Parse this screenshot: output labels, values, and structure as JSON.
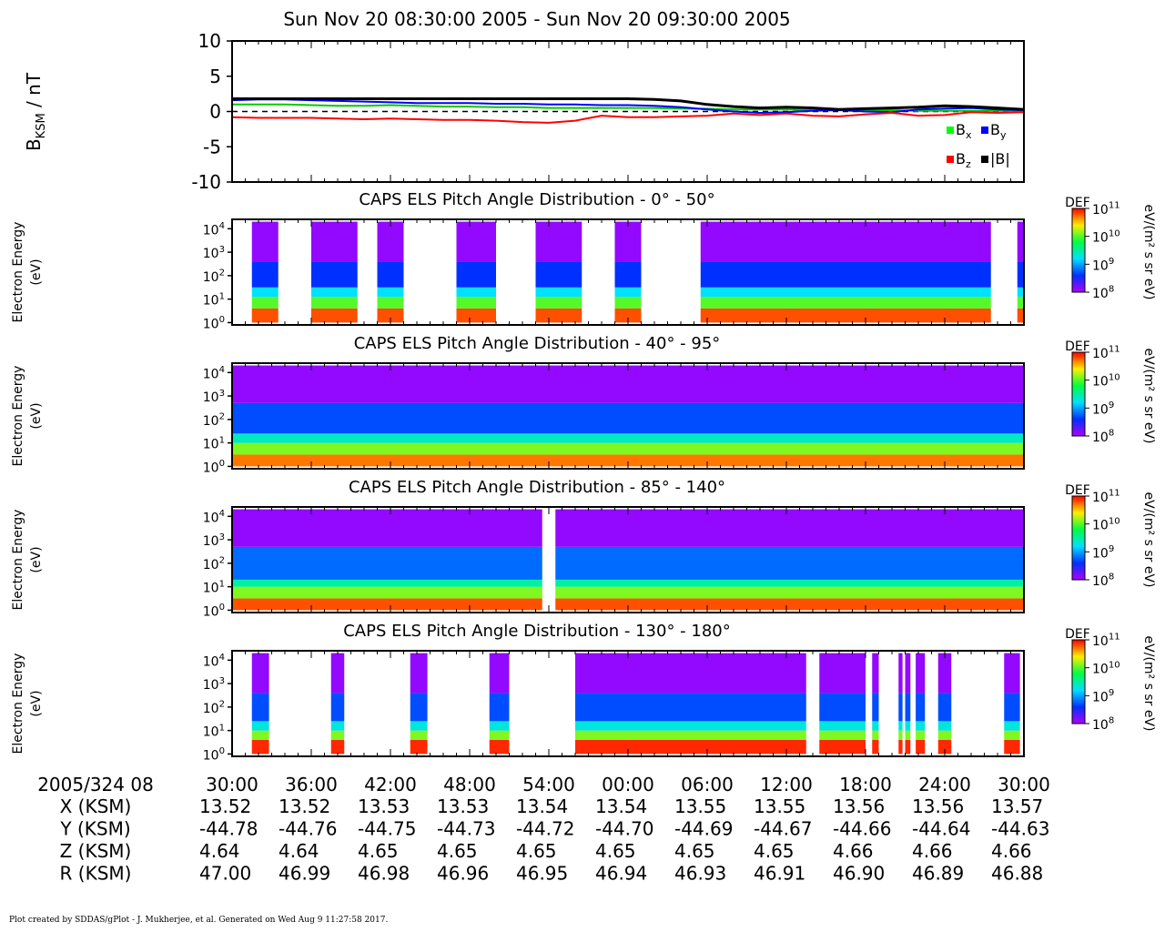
{
  "header": {
    "title": "Sun Nov 20 08:30:00 2005 - Sun Nov 20 09:30:00 2005"
  },
  "footer": {
    "text": "Plot created by SDDAS/gPlot - J. Mukherjee, et al.  Generated on Wed Aug 9 11:27:58 2017."
  },
  "chart_data": [
    {
      "type": "line",
      "ylabel_main": "B",
      "ylabel_sub": "KSM",
      "ylabel_unit": " / nT",
      "ylim": [
        -10,
        10
      ],
      "yticks": [
        10,
        5,
        0,
        -5,
        -10
      ],
      "x_minutes": [
        0,
        2,
        4,
        6,
        8,
        10,
        12,
        14,
        16,
        18,
        20,
        22,
        24,
        26,
        28,
        30,
        32,
        34,
        36,
        38,
        40,
        42,
        44,
        46,
        48,
        50,
        52,
        54,
        56,
        58,
        60
      ],
      "zero_line": "dashed",
      "series": [
        {
          "name": "x",
          "color": "#00cc00",
          "values": [
            1.0,
            1.0,
            1.0,
            0.9,
            0.8,
            0.8,
            0.9,
            0.8,
            0.7,
            0.7,
            0.6,
            0.6,
            0.5,
            0.5,
            0.5,
            0.5,
            0.5,
            0.4,
            0.4,
            0.3,
            0.3,
            0.3,
            0.2,
            0.2,
            0.2,
            0.2,
            0.1,
            0.1,
            0.1,
            0.1,
            0.1
          ]
        },
        {
          "name": "y",
          "color": "#0000ff",
          "values": [
            1.6,
            1.7,
            1.7,
            1.6,
            1.5,
            1.4,
            1.3,
            1.2,
            1.2,
            1.2,
            1.1,
            1.1,
            1.0,
            1.0,
            0.9,
            0.9,
            0.8,
            0.6,
            0.3,
            0.0,
            -0.2,
            -0.1,
            0.1,
            0.2,
            0.0,
            -0.1,
            0.3,
            0.4,
            0.5,
            0.3,
            0.2
          ]
        },
        {
          "name": "z",
          "color": "#ff0000",
          "values": [
            -0.8,
            -0.9,
            -0.9,
            -0.9,
            -1.0,
            -1.1,
            -1.0,
            -1.1,
            -1.2,
            -1.2,
            -1.3,
            -1.5,
            -1.6,
            -1.3,
            -0.6,
            -0.8,
            -0.8,
            -0.7,
            -0.6,
            -0.3,
            -0.5,
            -0.3,
            -0.6,
            -0.7,
            -0.4,
            -0.2,
            -0.6,
            -0.5,
            -0.1,
            -0.2,
            -0.1
          ]
        },
        {
          "name": "|B|",
          "color": "#000000",
          "values": [
            1.8,
            1.8,
            1.8,
            1.8,
            1.8,
            1.8,
            1.8,
            1.8,
            1.8,
            1.8,
            1.8,
            1.8,
            1.8,
            1.8,
            1.8,
            1.8,
            1.7,
            1.5,
            1.0,
            0.7,
            0.5,
            0.6,
            0.5,
            0.3,
            0.4,
            0.5,
            0.6,
            0.8,
            0.7,
            0.5,
            0.3
          ]
        }
      ],
      "legend": [
        {
          "main": "B",
          "sub": "x",
          "color": "#00ff00"
        },
        {
          "main": "B",
          "sub": "y",
          "color": "#0000ff"
        },
        {
          "main": "B",
          "sub": "z",
          "color": "#ff0000"
        },
        {
          "main": "|B|",
          "sub": "",
          "color": "#000000"
        }
      ],
      "legend_placement": "bottom-right"
    },
    {
      "type": "heatmap",
      "title": "CAPS ELS Pitch Angle Distribution - 0° - 50°",
      "ylabel_line1": "Electron Energy",
      "ylabel_line2": "(eV)",
      "y_scale": "log",
      "yticks": [
        {
          "base": "10",
          "exp": "4"
        },
        {
          "base": "10",
          "exp": "3"
        },
        {
          "base": "10",
          "exp": "2"
        },
        {
          "base": "10",
          "exp": "1"
        },
        {
          "base": "10",
          "exp": "0"
        }
      ],
      "colorbar_label": "DEF",
      "colorbar_unit": "eV/(m² s sr eV)",
      "colorbar_ticks": [
        {
          "base": "10",
          "exp": "11"
        },
        {
          "base": "10",
          "exp": "10"
        },
        {
          "base": "10",
          "exp": "9"
        },
        {
          "base": "10",
          "exp": "8"
        }
      ],
      "data_intervals_minutes": [
        [
          1.5,
          3.5
        ],
        [
          6.0,
          9.5
        ],
        [
          11.0,
          13.0
        ],
        [
          17.0,
          20.0
        ],
        [
          23.0,
          26.5
        ],
        [
          29.0,
          31.0
        ],
        [
          35.5,
          57.5
        ],
        [
          59.5,
          60.0
        ]
      ],
      "bands_log10_eV": [
        {
          "range": [
            0,
            0.6
          ],
          "level": 10.8
        },
        {
          "range": [
            0.6,
            1.1
          ],
          "level": 10.0
        },
        {
          "range": [
            1.1,
            1.5
          ],
          "level": 9.2
        },
        {
          "range": [
            1.5,
            2.6
          ],
          "level": 8.6
        },
        {
          "range": [
            2.6,
            4.3
          ],
          "level": 8.1
        }
      ]
    },
    {
      "type": "heatmap",
      "title": "CAPS ELS Pitch Angle Distribution - 40° - 95°",
      "ylabel_line1": "Electron Energy",
      "ylabel_line2": "(eV)",
      "y_scale": "log",
      "yticks": [
        {
          "base": "10",
          "exp": "4"
        },
        {
          "base": "10",
          "exp": "3"
        },
        {
          "base": "10",
          "exp": "2"
        },
        {
          "base": "10",
          "exp": "1"
        },
        {
          "base": "10",
          "exp": "0"
        }
      ],
      "colorbar_label": "DEF",
      "colorbar_unit": "eV/(m² s sr eV)",
      "colorbar_ticks": [
        {
          "base": "10",
          "exp": "11"
        },
        {
          "base": "10",
          "exp": "10"
        },
        {
          "base": "10",
          "exp": "9"
        },
        {
          "base": "10",
          "exp": "8"
        }
      ],
      "data_intervals_minutes": [
        [
          0.0,
          60.0
        ]
      ],
      "bands_log10_eV": [
        {
          "range": [
            0,
            0.5
          ],
          "level": 10.7
        },
        {
          "range": [
            0.5,
            1.0
          ],
          "level": 10.1
        },
        {
          "range": [
            1.0,
            1.4
          ],
          "level": 9.4
        },
        {
          "range": [
            1.4,
            2.7
          ],
          "level": 8.7
        },
        {
          "range": [
            2.7,
            4.3
          ],
          "level": 8.1
        }
      ]
    },
    {
      "type": "heatmap",
      "title": "CAPS ELS Pitch Angle Distribution - 85° - 140°",
      "ylabel_line1": "Electron Energy",
      "ylabel_line2": "(eV)",
      "y_scale": "log",
      "yticks": [
        {
          "base": "10",
          "exp": "4"
        },
        {
          "base": "10",
          "exp": "3"
        },
        {
          "base": "10",
          "exp": "2"
        },
        {
          "base": "10",
          "exp": "1"
        },
        {
          "base": "10",
          "exp": "0"
        }
      ],
      "colorbar_label": "DEF",
      "colorbar_unit": "eV/(m² s sr eV)",
      "colorbar_ticks": [
        {
          "base": "10",
          "exp": "11"
        },
        {
          "base": "10",
          "exp": "10"
        },
        {
          "base": "10",
          "exp": "9"
        },
        {
          "base": "10",
          "exp": "8"
        }
      ],
      "data_intervals_minutes": [
        [
          0.0,
          23.5
        ],
        [
          24.5,
          60.0
        ]
      ],
      "bands_log10_eV": [
        {
          "range": [
            0,
            0.5
          ],
          "level": 10.8
        },
        {
          "range": [
            0.5,
            1.0
          ],
          "level": 10.1
        },
        {
          "range": [
            1.0,
            1.3
          ],
          "level": 9.5
        },
        {
          "range": [
            1.3,
            2.7
          ],
          "level": 8.8
        },
        {
          "range": [
            2.7,
            4.3
          ],
          "level": 8.1
        }
      ]
    },
    {
      "type": "heatmap",
      "title": "CAPS ELS Pitch Angle Distribution - 130° - 180°",
      "ylabel_line1": "Electron Energy",
      "ylabel_line2": "(eV)",
      "y_scale": "log",
      "yticks": [
        {
          "base": "10",
          "exp": "4"
        },
        {
          "base": "10",
          "exp": "3"
        },
        {
          "base": "10",
          "exp": "2"
        },
        {
          "base": "10",
          "exp": "1"
        },
        {
          "base": "10",
          "exp": "0"
        }
      ],
      "colorbar_label": "DEF",
      "colorbar_unit": "eV/(m² s sr eV)",
      "colorbar_ticks": [
        {
          "base": "10",
          "exp": "11"
        },
        {
          "base": "10",
          "exp": "10"
        },
        {
          "base": "10",
          "exp": "9"
        },
        {
          "base": "10",
          "exp": "8"
        }
      ],
      "data_intervals_minutes": [
        [
          1.5,
          2.8
        ],
        [
          7.5,
          8.5
        ],
        [
          13.5,
          14.8
        ],
        [
          19.5,
          21.0
        ],
        [
          26.0,
          43.5
        ],
        [
          44.5,
          48.0
        ],
        [
          48.5,
          49.0
        ],
        [
          50.5,
          50.8
        ],
        [
          51.0,
          51.4
        ],
        [
          51.8,
          52.5
        ],
        [
          53.5,
          54.5
        ],
        [
          58.5,
          59.7
        ]
      ],
      "bands_log10_eV": [
        {
          "range": [
            0,
            0.6
          ],
          "level": 10.9
        },
        {
          "range": [
            0.6,
            1.0
          ],
          "level": 10.1
        },
        {
          "range": [
            1.0,
            1.4
          ],
          "level": 9.3
        },
        {
          "range": [
            1.4,
            2.6
          ],
          "level": 8.7
        },
        {
          "range": [
            2.6,
            4.3
          ],
          "level": 8.1
        }
      ]
    }
  ],
  "time_axis": {
    "row_label": "2005/324 08",
    "ticks": [
      "30:00",
      "36:00",
      "42:00",
      "48:00",
      "54:00",
      "00:00",
      "06:00",
      "12:00",
      "18:00",
      "24:00",
      "30:00"
    ],
    "rows": [
      {
        "label": "X (KSM)",
        "values": [
          "13.52",
          "13.52",
          "13.53",
          "13.53",
          "13.54",
          "13.54",
          "13.55",
          "13.55",
          "13.56",
          "13.56",
          "13.57"
        ]
      },
      {
        "label": "Y (KSM)",
        "values": [
          "-44.78",
          "-44.76",
          "-44.75",
          "-44.73",
          "-44.72",
          "-44.70",
          "-44.69",
          "-44.67",
          "-44.66",
          "-44.64",
          "-44.63"
        ]
      },
      {
        "label": "Z (KSM)",
        "values": [
          "4.64",
          "4.64",
          "4.65",
          "4.65",
          "4.65",
          "4.65",
          "4.65",
          "4.65",
          "4.66",
          "4.66",
          "4.66"
        ]
      },
      {
        "label": "R (KSM)",
        "values": [
          "47.00",
          "46.99",
          "46.98",
          "46.96",
          "46.95",
          "46.94",
          "46.93",
          "46.91",
          "46.90",
          "46.89",
          "46.88"
        ]
      }
    ]
  }
}
